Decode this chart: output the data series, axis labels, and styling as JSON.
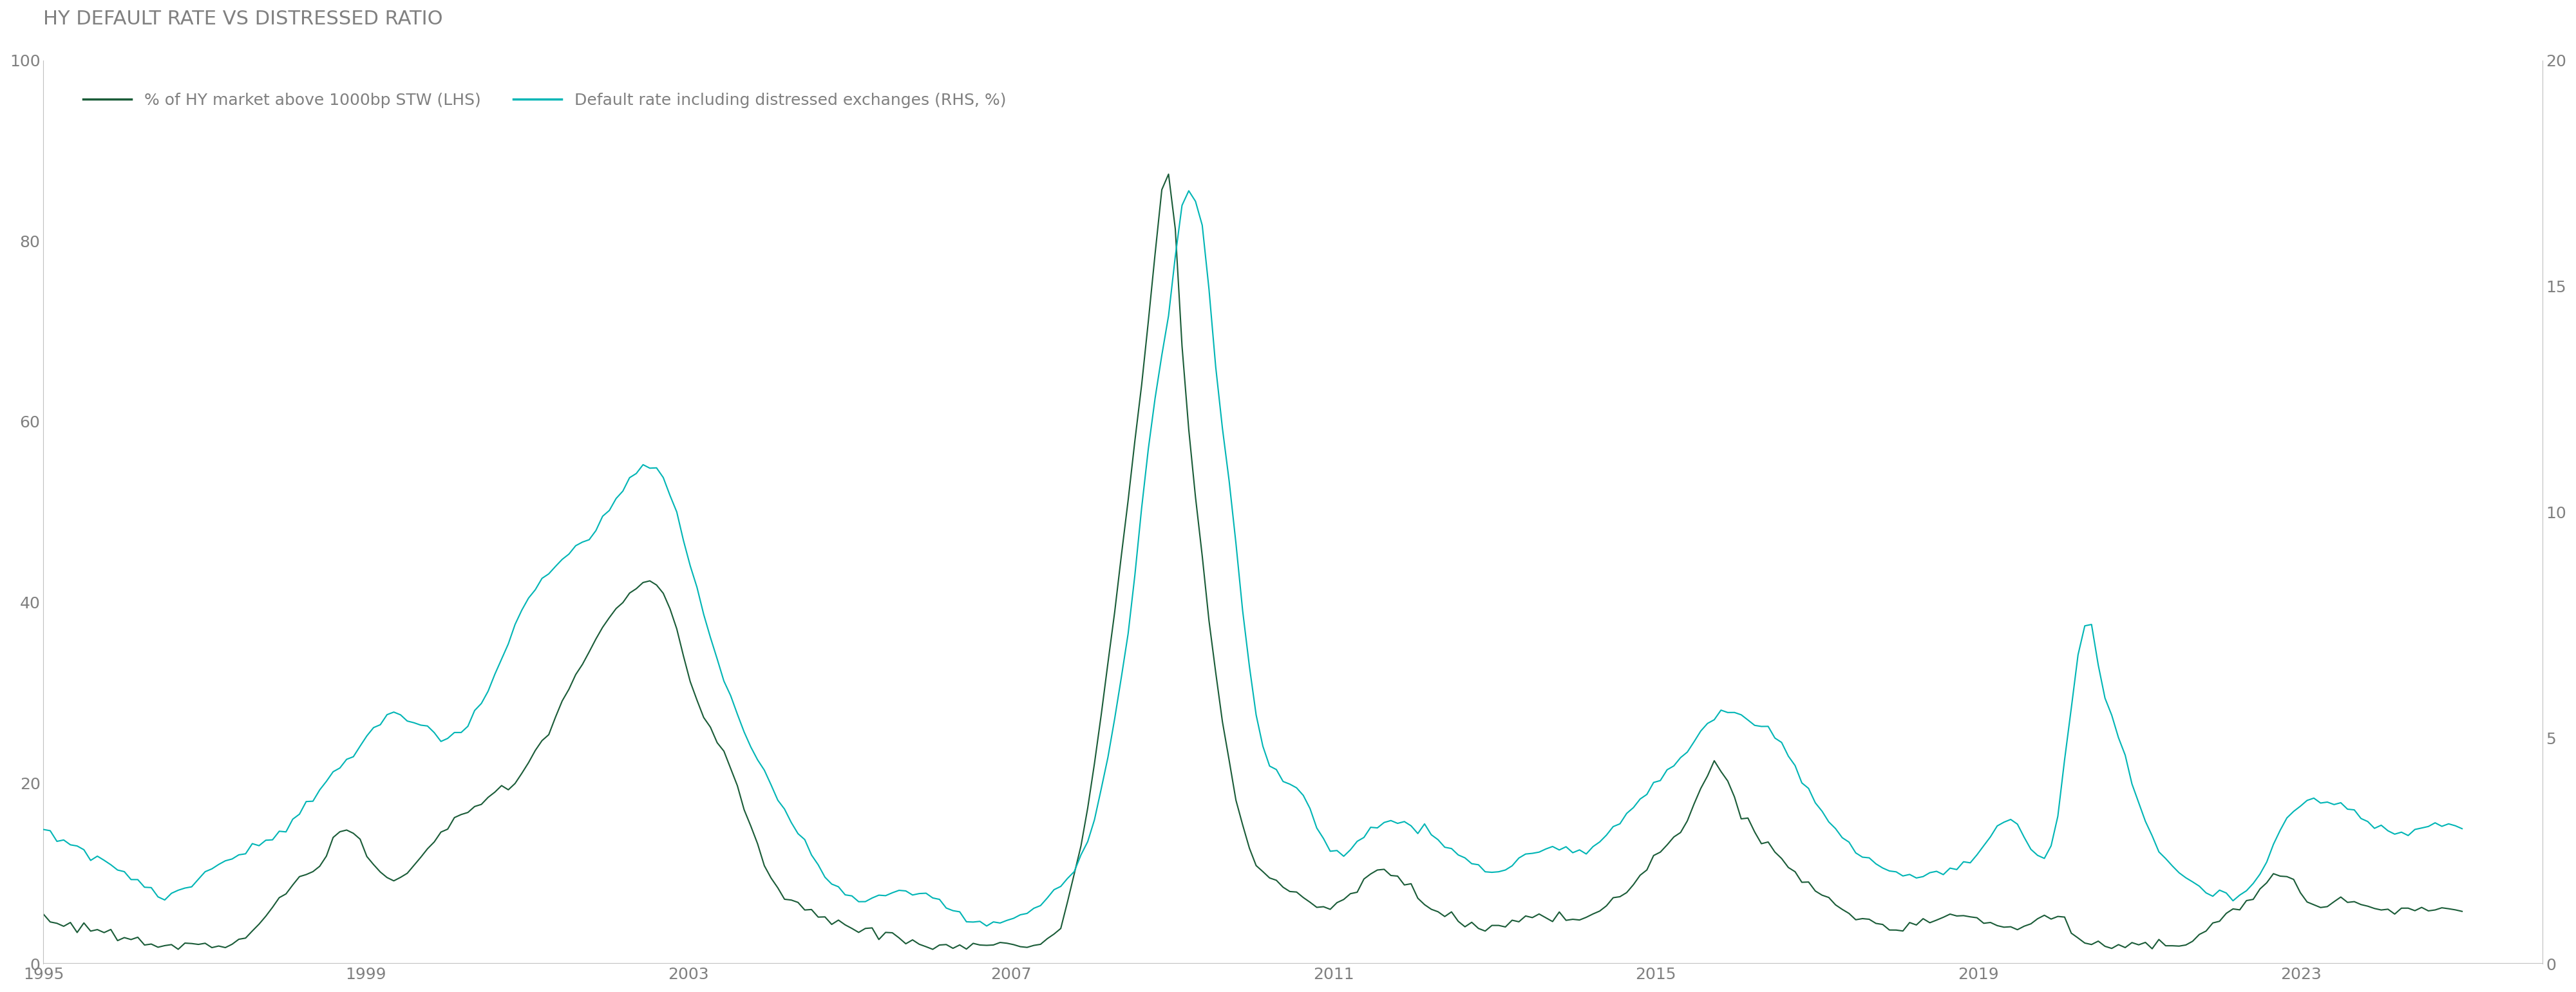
{
  "title": "HY DEFAULT RATE VS DISTRESSED RATIO",
  "legend1": "% of HY market above 1000bp STW (LHS)",
  "legend2": "Default rate including distressed exchanges (RHS, %)",
  "color_lhs": "#1a5c38",
  "color_rhs": "#00b5b5",
  "lhs_ylim": [
    0,
    100
  ],
  "rhs_ylim": [
    0,
    20
  ],
  "lhs_yticks": [
    0,
    20,
    40,
    60,
    80,
    100
  ],
  "rhs_yticks": [
    0,
    5,
    10,
    15,
    20
  ],
  "xticks": [
    1995,
    1999,
    2003,
    2007,
    2011,
    2015,
    2019,
    2023
  ],
  "xlim": [
    1995,
    2026
  ],
  "background_color": "#ffffff",
  "title_color": "#808080",
  "axis_color": "#808080",
  "tick_color": "#808080",
  "spine_color": "#c0c0c0",
  "title_fontsize": 22,
  "legend_fontsize": 18,
  "tick_fontsize": 18
}
